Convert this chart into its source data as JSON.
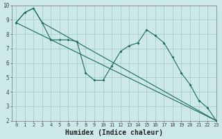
{
  "background_color": "#cce8e8",
  "grid_color": "#aacccc",
  "line_color": "#1a6b5a",
  "xlim": [
    -0.5,
    23
  ],
  "ylim": [
    2,
    10
  ],
  "yticks": [
    2,
    3,
    4,
    5,
    6,
    7,
    8,
    9,
    10
  ],
  "xticks": [
    0,
    1,
    2,
    3,
    4,
    5,
    6,
    7,
    8,
    9,
    10,
    11,
    12,
    13,
    14,
    15,
    16,
    17,
    18,
    19,
    20,
    21,
    22,
    23
  ],
  "line1_x": [
    0,
    1,
    2,
    3,
    4,
    5,
    6,
    7,
    8,
    9,
    10,
    11,
    12,
    13,
    14,
    15,
    16,
    17,
    18,
    19,
    20,
    21,
    22,
    23
  ],
  "line1_y": [
    8.8,
    9.5,
    9.8,
    8.8,
    7.6,
    7.6,
    7.6,
    7.5,
    5.3,
    4.8,
    4.8,
    5.8,
    6.8,
    7.2,
    7.4,
    8.3,
    7.9,
    7.4,
    6.4,
    5.3,
    4.5,
    3.4,
    2.9,
    2.0
  ],
  "line2_x": [
    0,
    1,
    2,
    3,
    23
  ],
  "line2_y": [
    8.8,
    9.5,
    9.8,
    8.8,
    2.0
  ],
  "line3_x": [
    0,
    23
  ],
  "line3_y": [
    8.8,
    2.0
  ],
  "xlabel": "Humidex (Indice chaleur)",
  "xlabel_fontsize": 7,
  "tick_fontsize": 5,
  "ytick_fontsize": 5.5
}
